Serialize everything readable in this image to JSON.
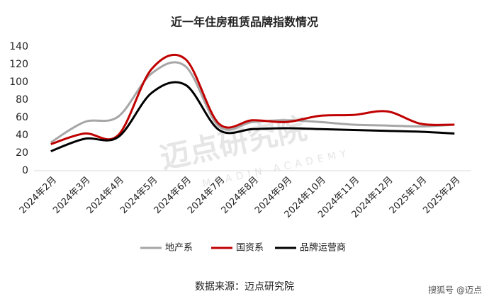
{
  "chart_data": {
    "type": "line",
    "title": "近一年住房租赁品牌指数情况",
    "categories": [
      "2024年2月",
      "2024年3月",
      "2024年4月",
      "2024年5月",
      "2024年6月",
      "2024年7月",
      "2024年8月",
      "2024年9月",
      "2024年10月",
      "2024年11月",
      "2024年12月",
      "2025年1月",
      "2025年2月"
    ],
    "series": [
      {
        "name": "地产系",
        "color": "#a6a6a6",
        "values": [
          32,
          55,
          61,
          110,
          118,
          50,
          55,
          57,
          55,
          52,
          51,
          50,
          52
        ]
      },
      {
        "name": "国资系",
        "color": "#c00000",
        "values": [
          30,
          42,
          40,
          115,
          126,
          53,
          57,
          55,
          62,
          63,
          67,
          53,
          52
        ]
      },
      {
        "name": "品牌运营商",
        "color": "#000000",
        "values": [
          22,
          36,
          38,
          88,
          97,
          46,
          47,
          48,
          47,
          46,
          45,
          44,
          42
        ]
      }
    ],
    "ylim": [
      0,
      140
    ],
    "yticks": [
      0,
      20,
      40,
      60,
      80,
      100,
      120,
      140
    ],
    "grid": false,
    "legend": "bottom",
    "watermark": "迈点研究院",
    "watermark_sub": "MEADIN ACADEMY",
    "source": "数据来源：迈点研究院",
    "credit": "搜狐号 @迈点"
  }
}
